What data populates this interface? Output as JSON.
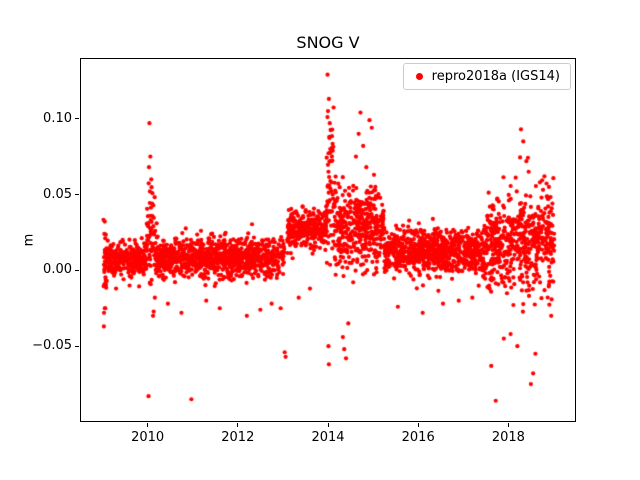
{
  "chart_data": {
    "type": "scatter",
    "title": "SNOG V",
    "xlabel": "",
    "ylabel": "m",
    "xlim": [
      2008.5,
      2019.5
    ],
    "ylim": [
      -0.1,
      0.14
    ],
    "xticks": [
      2010,
      2012,
      2014,
      2016,
      2018
    ],
    "yticks": [
      -0.05,
      0.0,
      0.05,
      0.1
    ],
    "grid": false,
    "legend": {
      "position": "upper right",
      "entries": [
        {
          "label": "repro2018a (IGS14)",
          "color": "#ff0000",
          "marker": "dot"
        }
      ]
    },
    "point_color": "#ff0000",
    "marker_radius": 2.1,
    "seed": 7,
    "series_note": "dense daily GNSS vertical residuals, generated from segment stats below",
    "segments": [
      {
        "x0": 2009.02,
        "x1": 2009.1,
        "n": 20,
        "mean": -0.004,
        "std": 0.016
      },
      {
        "x0": 2009.05,
        "x1": 2009.98,
        "n": 320,
        "mean": 0.007,
        "std": 0.0055
      },
      {
        "x0": 2009.98,
        "x1": 2010.17,
        "n": 55,
        "mean": 0.022,
        "std": 0.018
      },
      {
        "x0": 2010.17,
        "x1": 2013.03,
        "n": 1000,
        "mean": 0.0085,
        "std": 0.0062
      },
      {
        "x0": 2013.1,
        "x1": 2013.97,
        "n": 300,
        "mean": 0.027,
        "std": 0.0062
      },
      {
        "x0": 2013.97,
        "x1": 2014.13,
        "n": 55,
        "mean": 0.055,
        "std": 0.028
      },
      {
        "x0": 2014.13,
        "x1": 2015.25,
        "n": 390,
        "mean": 0.027,
        "std": 0.013
      },
      {
        "x0": 2015.25,
        "x1": 2017.5,
        "n": 780,
        "mean": 0.012,
        "std": 0.0072
      },
      {
        "x0": 2017.5,
        "x1": 2019.02,
        "n": 540,
        "mean": 0.018,
        "std": 0.016
      }
    ],
    "outliers": [
      [
        2009.03,
        -0.037
      ],
      [
        2009.05,
        -0.025
      ],
      [
        2009.04,
        0.024
      ],
      [
        2009.3,
        -0.012
      ],
      [
        2009.6,
        -0.01
      ],
      [
        2010.02,
        -0.083
      ],
      [
        2010.04,
        0.097
      ],
      [
        2010.03,
        0.068
      ],
      [
        2010.06,
        0.075
      ],
      [
        2010.05,
        0.052
      ],
      [
        2010.08,
        0.06
      ],
      [
        2010.1,
        0.044
      ],
      [
        2010.07,
        0.036
      ],
      [
        2010.12,
        -0.03
      ],
      [
        2010.16,
        -0.018
      ],
      [
        2010.2,
        0.031
      ],
      [
        2010.45,
        -0.022
      ],
      [
        2010.75,
        -0.028
      ],
      [
        2010.97,
        -0.085
      ],
      [
        2011.3,
        -0.02
      ],
      [
        2011.6,
        -0.025
      ],
      [
        2012.2,
        -0.03
      ],
      [
        2012.5,
        -0.026
      ],
      [
        2012.75,
        -0.022
      ],
      [
        2012.95,
        -0.025
      ],
      [
        2013.04,
        -0.054
      ],
      [
        2013.06,
        -0.057
      ],
      [
        2013.35,
        -0.018
      ],
      [
        2013.6,
        -0.012
      ],
      [
        2013.99,
        0.129
      ],
      [
        2014.02,
        0.113
      ],
      [
        2014.0,
        0.105
      ],
      [
        2014.04,
        0.097
      ],
      [
        2014.03,
        0.088
      ],
      [
        2014.05,
        0.08
      ],
      [
        2014.06,
        0.072
      ],
      [
        2014.01,
        0.065
      ],
      [
        2014.08,
        0.058
      ],
      [
        2014.01,
        -0.05
      ],
      [
        2014.02,
        -0.062
      ],
      [
        2014.33,
        -0.044
      ],
      [
        2014.36,
        -0.052
      ],
      [
        2014.4,
        -0.058
      ],
      [
        2014.45,
        -0.035
      ],
      [
        2014.62,
        0.075
      ],
      [
        2014.68,
        0.09
      ],
      [
        2014.72,
        0.104
      ],
      [
        2014.78,
        0.082
      ],
      [
        2014.85,
        0.068
      ],
      [
        2014.92,
        0.099
      ],
      [
        2014.97,
        0.094
      ],
      [
        2015.02,
        0.063
      ],
      [
        2015.05,
        0.055
      ],
      [
        2015.1,
        0.048
      ],
      [
        2015.55,
        -0.024
      ],
      [
        2016.1,
        -0.028
      ],
      [
        2016.55,
        -0.022
      ],
      [
        2016.9,
        -0.02
      ],
      [
        2017.2,
        -0.018
      ],
      [
        2017.62,
        -0.063
      ],
      [
        2017.72,
        -0.086
      ],
      [
        2017.9,
        -0.045
      ],
      [
        2018.05,
        -0.042
      ],
      [
        2018.2,
        -0.05
      ],
      [
        2018.28,
        0.093
      ],
      [
        2018.33,
        0.085
      ],
      [
        2018.4,
        0.072
      ],
      [
        2018.45,
        0.065
      ],
      [
        2018.5,
        -0.075
      ],
      [
        2018.55,
        -0.068
      ],
      [
        2018.6,
        -0.055
      ],
      [
        2018.7,
        0.058
      ],
      [
        2018.8,
        0.062
      ],
      [
        2018.9,
        0.055
      ],
      [
        2018.95,
        -0.03
      ]
    ]
  }
}
